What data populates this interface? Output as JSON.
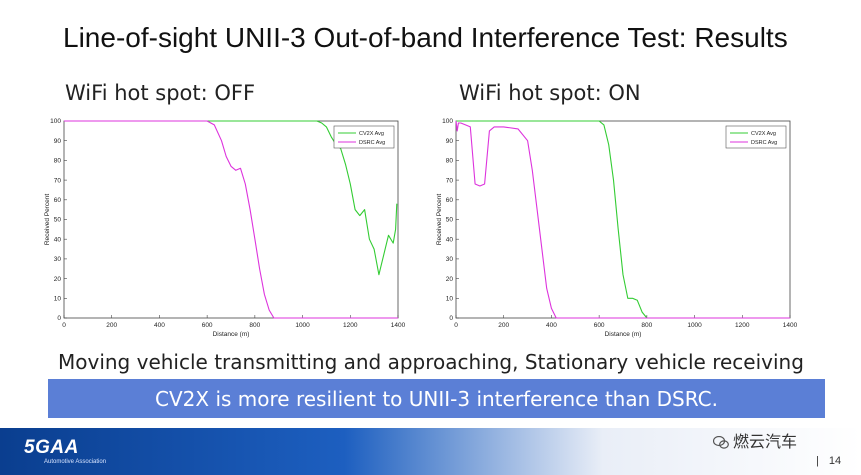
{
  "slide": {
    "title": "Line-of-sight UNII-3 Out-of-band Interference Test: Results",
    "caption": "Moving vehicle transmitting and approaching, Stationary vehicle receiving",
    "banner": "CV2X is more resilient to UNII-3 interference than DSRC.",
    "logo_text": "5GAA",
    "logo_subtext": "Automotive Association",
    "watermark": "燃云汽车",
    "page_separator": "|",
    "page_number": "14"
  },
  "colors": {
    "cv2x": "#33cc33",
    "dsrc": "#dd33dd",
    "banner": "#5b7fd6"
  },
  "chart_data": [
    {
      "type": "line",
      "heading": "WiFi hot spot: OFF",
      "xlabel": "Distance (m)",
      "ylabel": "Received Percent",
      "xlim": [
        0,
        1400
      ],
      "ylim": [
        0,
        100
      ],
      "xticks": [
        "0",
        "200",
        "400",
        "600",
        "800",
        "1000",
        "1200",
        "1400"
      ],
      "yticks": [
        "0",
        "10",
        "20",
        "30",
        "40",
        "50",
        "60",
        "70",
        "80",
        "90",
        "100"
      ],
      "legend_position": "top-right",
      "grid": false,
      "series": [
        {
          "name": "CV2X Avg",
          "color": "#33cc33",
          "x": [
            0,
            1060,
            1080,
            1100,
            1120,
            1140,
            1160,
            1180,
            1200,
            1220,
            1240,
            1260,
            1280,
            1300,
            1320,
            1340,
            1360,
            1380,
            1390,
            1395
          ],
          "y": [
            100,
            100,
            99,
            97,
            92,
            88,
            86,
            78,
            68,
            55,
            52,
            55,
            40,
            35,
            22,
            32,
            42,
            38,
            45,
            58
          ]
        },
        {
          "name": "DSRC Avg",
          "color": "#dd33dd",
          "x": [
            0,
            600,
            630,
            660,
            680,
            700,
            720,
            740,
            760,
            780,
            800,
            820,
            840,
            860,
            880,
            1400
          ],
          "y": [
            100,
            100,
            98,
            90,
            82,
            77,
            75,
            76,
            68,
            55,
            40,
            25,
            12,
            4,
            0,
            0
          ]
        }
      ]
    },
    {
      "type": "line",
      "heading": "WiFi hot spot: ON",
      "xlabel": "Distance (m)",
      "ylabel": "Received Percent",
      "xlim": [
        0,
        1400
      ],
      "ylim": [
        0,
        100
      ],
      "xticks": [
        "0",
        "200",
        "400",
        "600",
        "800",
        "1000",
        "1200",
        "1400"
      ],
      "yticks": [
        "0",
        "10",
        "20",
        "30",
        "40",
        "50",
        "60",
        "70",
        "80",
        "90",
        "100"
      ],
      "legend_position": "top-right",
      "grid": false,
      "series": [
        {
          "name": "CV2X Avg",
          "color": "#33cc33",
          "x": [
            0,
            600,
            620,
            640,
            660,
            680,
            700,
            720,
            740,
            760,
            780,
            800,
            1400
          ],
          "y": [
            100,
            100,
            98,
            88,
            70,
            45,
            22,
            10,
            10,
            9,
            3,
            0,
            0
          ]
        },
        {
          "name": "DSRC Avg",
          "color": "#dd33dd",
          "x": [
            0,
            5,
            10,
            20,
            40,
            60,
            80,
            100,
            120,
            140,
            160,
            200,
            260,
            300,
            320,
            340,
            360,
            380,
            400,
            420,
            1400
          ],
          "y": [
            100,
            95,
            99,
            99,
            98,
            97,
            68,
            67,
            68,
            95,
            97,
            97,
            96,
            90,
            75,
            55,
            35,
            15,
            5,
            0,
            0
          ]
        }
      ]
    }
  ]
}
